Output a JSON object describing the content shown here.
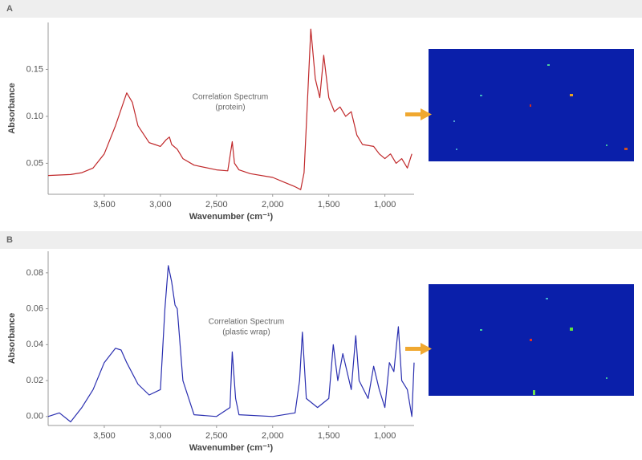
{
  "chart_data": [
    {
      "type": "line",
      "label": "A",
      "annotation": [
        "Correlation Spectrum",
        "(protein)"
      ],
      "x_label": "Wavenumber (cm⁻¹)",
      "y_label": "Absorbance",
      "xlim": [
        4000,
        740
      ],
      "ylim": [
        0.017,
        0.2
      ],
      "xticks": [
        {
          "value": 3500,
          "label": "3,500"
        },
        {
          "value": 3000,
          "label": "3,000"
        },
        {
          "value": 2500,
          "label": "2,500"
        },
        {
          "value": 2000,
          "label": "2,000"
        },
        {
          "value": 1500,
          "label": "1,500"
        },
        {
          "value": 1000,
          "label": "1,000"
        }
      ],
      "yticks": [
        0.05,
        {
          "value": 0.1,
          "label": "0.10"
        },
        0.15
      ],
      "x": [
        4000,
        3800,
        3700,
        3600,
        3500,
        3400,
        3300,
        3250,
        3200,
        3100,
        3050,
        3000,
        2950,
        2920,
        2900,
        2850,
        2800,
        2700,
        2500,
        2400,
        2360,
        2340,
        2300,
        2200,
        2000,
        1900,
        1800,
        1750,
        1720,
        1700,
        1660,
        1620,
        1580,
        1545,
        1500,
        1450,
        1400,
        1350,
        1300,
        1250,
        1200,
        1100,
        1050,
        1000,
        950,
        900,
        850,
        800,
        760
      ],
      "series": [
        {
          "color": "#c0282a",
          "values": [
            0.037,
            0.038,
            0.04,
            0.045,
            0.06,
            0.09,
            0.125,
            0.115,
            0.09,
            0.072,
            0.07,
            0.068,
            0.075,
            0.078,
            0.07,
            0.065,
            0.055,
            0.048,
            0.043,
            0.042,
            0.073,
            0.05,
            0.043,
            0.039,
            0.035,
            0.03,
            0.025,
            0.022,
            0.04,
            0.09,
            0.193,
            0.14,
            0.12,
            0.165,
            0.12,
            0.105,
            0.11,
            0.1,
            0.105,
            0.08,
            0.07,
            0.068,
            0.06,
            0.055,
            0.06,
            0.05,
            0.055,
            0.045,
            0.06
          ]
        }
      ]
    },
    {
      "type": "line",
      "label": "B",
      "annotation": [
        "Correlation Spectrum",
        "(plastic wrap)"
      ],
      "x_label": "Wavenumber (cm⁻¹)",
      "y_label": "Absorbance",
      "xlim": [
        4000,
        740
      ],
      "ylim": [
        -0.005,
        0.092
      ],
      "xticks": [
        {
          "value": 3500,
          "label": "3,500"
        },
        {
          "value": 3000,
          "label": "3,000"
        },
        {
          "value": 2500,
          "label": "2,500"
        },
        {
          "value": 2000,
          "label": "2,000"
        },
        {
          "value": 1500,
          "label": "1,500"
        },
        {
          "value": 1000,
          "label": "1,000"
        }
      ],
      "yticks": [
        {
          "value": 0,
          "label": "0.00"
        },
        0.02,
        0.04,
        0.06,
        0.08
      ],
      "x": [
        4000,
        3900,
        3800,
        3700,
        3600,
        3500,
        3400,
        3350,
        3300,
        3200,
        3100,
        3000,
        2960,
        2930,
        2900,
        2870,
        2850,
        2800,
        2700,
        2500,
        2380,
        2360,
        2330,
        2300,
        2000,
        1800,
        1760,
        1735,
        1700,
        1600,
        1500,
        1460,
        1420,
        1375,
        1300,
        1260,
        1230,
        1150,
        1100,
        1050,
        1000,
        960,
        920,
        880,
        850,
        800,
        760,
        740
      ],
      "series": [
        {
          "color": "#2a2fb0",
          "values": [
            0.0,
            0.002,
            -0.003,
            0.005,
            0.015,
            0.03,
            0.038,
            0.037,
            0.03,
            0.018,
            0.012,
            0.015,
            0.06,
            0.084,
            0.075,
            0.062,
            0.06,
            0.02,
            0.001,
            0.0,
            0.005,
            0.036,
            0.01,
            0.001,
            0.0,
            0.002,
            0.02,
            0.047,
            0.01,
            0.005,
            0.01,
            0.04,
            0.02,
            0.035,
            0.015,
            0.045,
            0.02,
            0.01,
            0.028,
            0.015,
            0.005,
            0.03,
            0.025,
            0.05,
            0.02,
            0.015,
            0.0,
            0.03
          ]
        }
      ]
    }
  ]
}
